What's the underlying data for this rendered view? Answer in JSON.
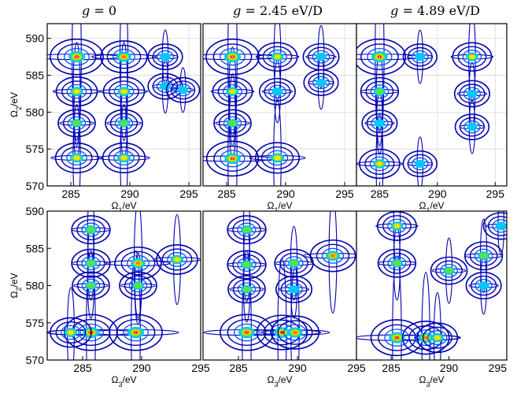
{
  "column_titles": [
    {
      "var": "g",
      "rest": " = 0"
    },
    {
      "var": "g",
      "rest": " = 2.45 eV/D"
    },
    {
      "var": "g",
      "rest": " = 4.89 eV/D"
    }
  ],
  "colors": {
    "contour_outer": "#0000b0",
    "contour_mid": "#0050ff",
    "contour_inner": "#00c8ff",
    "peak_green": "#60e040",
    "peak_yellow": "#ffe000",
    "peak_orange": "#ff8000",
    "peak_red": "#d00000",
    "grid": "#d8d8d8",
    "frame": "#000000"
  },
  "chart_data": [
    {
      "type": "heatmap",
      "row": "top",
      "column": 1,
      "xlabel": "Ω1/eV",
      "ylabel": "Ω2/eV",
      "xlim": [
        283,
        296
      ],
      "ylim": [
        570,
        592
      ],
      "xticks": [
        285,
        290,
        295
      ],
      "yticks": [
        570,
        575,
        580,
        585,
        590
      ],
      "grid": true,
      "peaks": [
        [
          285.5,
          587.5,
          1.0
        ],
        [
          289.5,
          587.5,
          0.75
        ],
        [
          285.5,
          573.8,
          0.6
        ],
        [
          289.5,
          573.8,
          0.6
        ],
        [
          285.5,
          582.8,
          0.55
        ],
        [
          289.5,
          582.8,
          0.55
        ],
        [
          285.5,
          578.5,
          0.4
        ],
        [
          289.5,
          578.5,
          0.4
        ],
        [
          293,
          587.5,
          0.3
        ],
        [
          293,
          583.5,
          0.3
        ],
        [
          294.5,
          583,
          0.25
        ]
      ]
    },
    {
      "type": "heatmap",
      "row": "top",
      "column": 2,
      "xlabel": "Ω1/eV",
      "ylabel": "",
      "xlim": [
        283,
        296
      ],
      "ylim": [
        570,
        592
      ],
      "xticks": [
        285,
        290,
        295
      ],
      "yticks": [],
      "grid": true,
      "peaks": [
        [
          285.5,
          587.5,
          1.0
        ],
        [
          285.5,
          573.7,
          0.95
        ],
        [
          289.3,
          573.8,
          0.65
        ],
        [
          289.3,
          587.5,
          0.5
        ],
        [
          285.5,
          582.8,
          0.5
        ],
        [
          285.5,
          578.5,
          0.4
        ],
        [
          293,
          587.5,
          0.35
        ],
        [
          293,
          584,
          0.3
        ],
        [
          289.3,
          582.8,
          0.35
        ]
      ]
    },
    {
      "type": "heatmap",
      "row": "top",
      "column": 3,
      "xlabel": "Ω1/eV",
      "ylabel": "",
      "xlim": [
        283,
        296
      ],
      "ylim": [
        570,
        592
      ],
      "xticks": [
        285,
        290,
        295
      ],
      "yticks": [],
      "grid": true,
      "peaks": [
        [
          285,
          587.5,
          1.0
        ],
        [
          285,
          573,
          0.55
        ],
        [
          293,
          587.5,
          0.5
        ],
        [
          288.5,
          573,
          0.3
        ],
        [
          285,
          582.8,
          0.45
        ],
        [
          285,
          578.5,
          0.35
        ],
        [
          293,
          582.5,
          0.35
        ],
        [
          293,
          578,
          0.3
        ],
        [
          288.5,
          587.5,
          0.3
        ]
      ]
    },
    {
      "type": "heatmap",
      "row": "bottom",
      "column": 1,
      "xlabel": "Ω3/eV",
      "ylabel": "Ω2/eV",
      "xlim": [
        282,
        295
      ],
      "ylim": [
        570,
        590
      ],
      "xticks": [
        285,
        290,
        295
      ],
      "yticks": [
        570,
        575,
        580,
        585,
        590
      ],
      "grid": false,
      "peaks": [
        [
          285.7,
          573.7,
          1.0
        ],
        [
          289.5,
          573.7,
          1.0
        ],
        [
          289.7,
          583,
          0.75
        ],
        [
          293,
          583.5,
          0.55
        ],
        [
          285.7,
          587.5,
          0.45
        ],
        [
          285.7,
          583,
          0.45
        ],
        [
          285.7,
          580,
          0.4
        ],
        [
          284,
          573.7,
          0.55
        ],
        [
          289.7,
          580,
          0.4
        ]
      ]
    },
    {
      "type": "heatmap",
      "row": "bottom",
      "column": 2,
      "xlabel": "Ω3/eV",
      "ylabel": "",
      "xlim": [
        282,
        295
      ],
      "ylim": [
        570,
        590
      ],
      "xticks": [
        285,
        290,
        295
      ],
      "yticks": [],
      "grid": false,
      "peaks": [
        [
          285.7,
          573.7,
          1.0
        ],
        [
          288.7,
          573.7,
          0.9
        ],
        [
          289.8,
          573.7,
          0.8
        ],
        [
          293,
          584,
          0.7
        ],
        [
          285.7,
          587.5,
          0.45
        ],
        [
          285.7,
          582.8,
          0.45
        ],
        [
          289.7,
          583,
          0.45
        ],
        [
          285.7,
          579.5,
          0.4
        ],
        [
          289.7,
          579.5,
          0.35
        ]
      ]
    },
    {
      "type": "heatmap",
      "row": "bottom",
      "column": 3,
      "xlabel": "Ω3/eV",
      "ylabel": "",
      "xlim": [
        282,
        295
      ],
      "ylim": [
        570,
        590
      ],
      "xticks": [
        285,
        290,
        295
      ],
      "yticks": [],
      "grid": false,
      "peaks": [
        [
          285.5,
          573,
          1.0
        ],
        [
          288,
          573,
          0.8
        ],
        [
          289,
          573,
          0.55
        ],
        [
          285.5,
          588,
          0.5
        ],
        [
          285.5,
          583,
          0.45
        ],
        [
          293,
          584,
          0.45
        ],
        [
          290,
          582,
          0.4
        ],
        [
          293,
          580,
          0.35
        ],
        [
          294.5,
          588,
          0.35
        ]
      ]
    }
  ]
}
